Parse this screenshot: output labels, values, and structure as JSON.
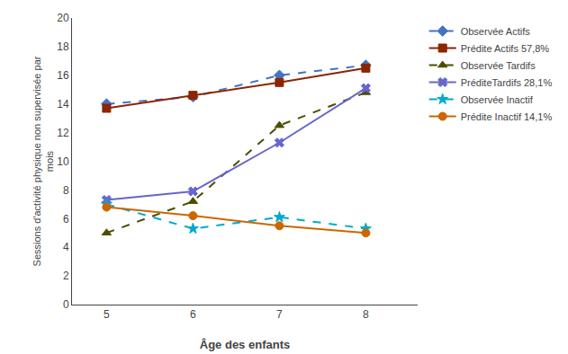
{
  "chart_data": {
    "type": "line",
    "xlabel": "Âge des enfants",
    "ylabel": "Sessions d'activité physique non supervisée par\nmois",
    "x": [
      5,
      6,
      7,
      8
    ],
    "series": [
      {
        "name": "Observée Actifs",
        "color": "#4472c4",
        "marker": "diamond",
        "line_style": "dashed",
        "values": [
          14.0,
          14.5,
          16.0,
          16.7
        ]
      },
      {
        "name": "Prédite Actifs 57,8%",
        "color": "#8B2500",
        "marker": "square",
        "line_style": "solid",
        "values": [
          13.7,
          14.6,
          15.5,
          16.5
        ]
      },
      {
        "name": "Observée Tardifs",
        "color": "#4d4d00",
        "marker": "triangle-up",
        "line_style": "dashed",
        "values": [
          5.0,
          7.2,
          12.5,
          14.8
        ]
      },
      {
        "name": "PréditeTardifs 28,1%",
        "color": "#6666cc",
        "marker": "x",
        "line_style": "solid",
        "values": [
          7.3,
          7.9,
          11.3,
          15.1
        ]
      },
      {
        "name": "Observée Inactif",
        "color": "#00aacc",
        "marker": "star",
        "line_style": "dashed",
        "values": [
          7.0,
          5.3,
          6.1,
          5.3
        ]
      },
      {
        "name": "Prédite Inactif 14,1%",
        "color": "#cc6600",
        "marker": "circle",
        "line_style": "solid",
        "values": [
          6.8,
          6.2,
          5.5,
          5.0
        ]
      }
    ],
    "xlim": [
      4.6,
      8.6
    ],
    "xticks": [
      5,
      6,
      7,
      8
    ],
    "ylim": [
      0,
      20
    ],
    "yticks": [
      0,
      2,
      4,
      6,
      8,
      10,
      12,
      14,
      16,
      18,
      20
    ],
    "grid": false,
    "legend": "right"
  }
}
